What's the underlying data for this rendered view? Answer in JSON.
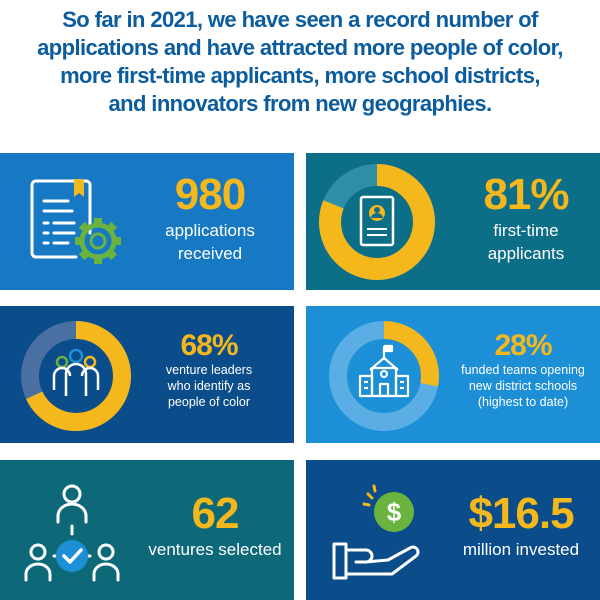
{
  "headline": {
    "line1": "So far in 2021, we have seen a record number of",
    "line2": "applications and have attracted more people of color,",
    "line3": "more first-time applicants, more school districts,",
    "line4": "and innovators from new geographies."
  },
  "stats": [
    {
      "value": "980",
      "caption_lines": [
        "applications",
        "received"
      ],
      "icon": "document-gear-icon"
    },
    {
      "value": "81%",
      "caption_lines": [
        "first-time",
        "applicants"
      ],
      "icon": "resume-donut-icon",
      "percent": 81
    },
    {
      "value": "68%",
      "caption_lines": [
        "venture leaders",
        "who identify as",
        "people of color"
      ],
      "icon": "people-donut-icon",
      "percent": 68
    },
    {
      "value": "28%",
      "caption_lines": [
        "funded teams opening",
        "new district schools",
        "(highest to date)"
      ],
      "icon": "school-donut-icon",
      "percent": 28
    },
    {
      "value": "62",
      "caption_lines": [
        "ventures selected"
      ],
      "icon": "network-check-icon"
    },
    {
      "value": "$16.5",
      "caption_lines": [
        "million invested"
      ],
      "icon": "money-hand-icon"
    }
  ],
  "colors": {
    "headline": "#0b5c9e",
    "accent_yellow": "#f5b81c",
    "panel_blue": "#1779c4",
    "panel_teal": "#0d6e88",
    "panel_navy": "#0b4d8a",
    "panel_light_blue": "#1d8fd6",
    "icon_green": "#6ab33f"
  }
}
